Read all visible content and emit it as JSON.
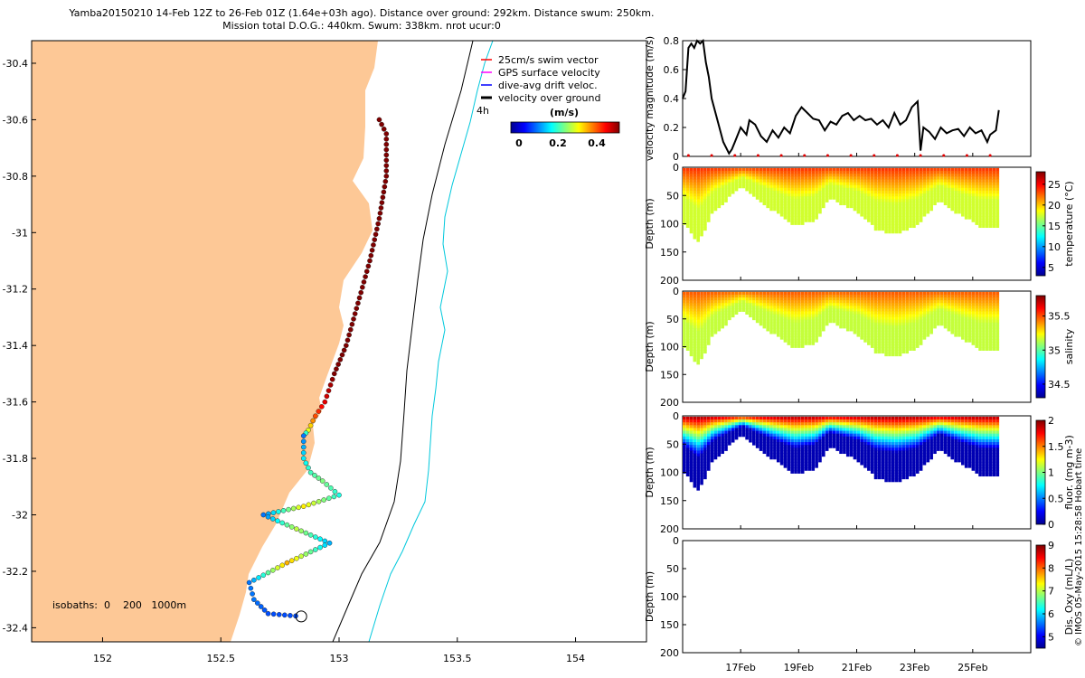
{
  "header": {
    "line1": "Yamba20150210 14-Feb 12Z to 26-Feb 01Z (1.64e+03h ago). Distance over ground: 292km. Distance swum: 250km.",
    "line2": "Mission total D.O.G.: 440km. Swum: 338km. nrot ucur:0"
  },
  "map": {
    "xticks": [
      "152",
      "152.5",
      "153",
      "153.5",
      "154"
    ],
    "yticks": [
      "-30.4",
      "-30.6",
      "-30.8",
      "-31",
      "-31.2",
      "-31.4",
      "-31.6",
      "-31.8",
      "-32",
      "-32.2",
      "-32.4"
    ],
    "legend": [
      "25cm/s swim vector",
      "GPS surface velocity",
      "dive-avg drift veloc.",
      "velocity over ground"
    ],
    "legend_colors": [
      "#ff0000",
      "#ff00ff",
      "#0000ff",
      "#000000"
    ],
    "time_marker": "4h",
    "colorbar_title": "(m/s)",
    "colorbar_ticks": [
      "0",
      "0.2",
      "0.4"
    ],
    "isobaths": "isobaths:  0    200   1000m",
    "land_color": "#fdc896",
    "isobath_200_color": "#000000",
    "isobath_1000_color": "#00c8dc"
  },
  "panels": {
    "velocity": {
      "ylabel": "velocity magnitude (m/s)",
      "yticks": [
        "0",
        "0.2",
        "0.4",
        "0.6",
        "0.8"
      ]
    },
    "temperature": {
      "ylabel": "Depth (m)",
      "cb_label": "temperature (°C)",
      "cb_ticks": [
        "5",
        "10",
        "15",
        "20",
        "25"
      ]
    },
    "salinity": {
      "ylabel": "Depth (m)",
      "cb_label": "salinity",
      "cb_ticks": [
        "34.5",
        "35",
        "35.5"
      ]
    },
    "fluor": {
      "ylabel": "Depth (m)",
      "cb_label": "fluor. (mg m-3)",
      "cb_ticks": [
        "0",
        "0.5",
        "1",
        "1.5",
        "2"
      ]
    },
    "oxygen": {
      "ylabel": "Depth (m)",
      "cb_label": "Dis. Oxy (mL/L)",
      "cb_ticks": [
        "5",
        "6",
        "7",
        "8",
        "9"
      ]
    },
    "depth_ticks": [
      "0",
      "50",
      "100",
      "150",
      "200"
    ],
    "xticks": [
      "17Feb",
      "19Feb",
      "21Feb",
      "23Feb",
      "25Feb"
    ]
  },
  "watermark": "© IMOS 05-May-2015 15:28:58 Hobart time",
  "chart_data": [
    {
      "type": "scatter",
      "name": "glider track",
      "xlim": [
        151.7,
        154.3
      ],
      "ylim": [
        -32.45,
        -30.32
      ],
      "xlabel": "",
      "ylabel": "",
      "x": [
        153.17,
        153.2,
        153.2,
        153.17,
        153.13,
        153.08,
        153.03,
        152.98,
        152.94,
        152.9,
        152.87,
        152.85,
        152.85,
        152.88,
        152.93,
        153.0,
        152.85,
        152.68,
        152.82,
        152.96,
        152.78,
        152.62,
        152.64,
        152.7,
        152.84
      ],
      "y": [
        -30.6,
        -30.65,
        -30.8,
        -30.95,
        -31.1,
        -31.25,
        -31.4,
        -31.5,
        -31.6,
        -31.65,
        -31.7,
        -31.72,
        -31.8,
        -31.85,
        -31.88,
        -31.93,
        -31.97,
        -32.0,
        -32.05,
        -32.1,
        -32.17,
        -32.24,
        -32.3,
        -32.35,
        -32.36
      ],
      "speed": [
        0.5,
        0.5,
        0.5,
        0.5,
        0.5,
        0.5,
        0.5,
        0.5,
        0.45,
        0.4,
        0.3,
        0.12,
        0.18,
        0.22,
        0.25,
        0.2,
        0.32,
        0.12,
        0.28,
        0.15,
        0.35,
        0.12,
        0.12,
        0.1,
        0.1
      ]
    },
    {
      "type": "line",
      "name": "velocity magnitude",
      "xlim": [
        15.0,
        27.0
      ],
      "ylim": [
        0,
        0.8
      ],
      "x": [
        15.0,
        15.1,
        15.2,
        15.3,
        15.4,
        15.5,
        15.6,
        15.7,
        15.8,
        15.9,
        16.0,
        16.2,
        16.4,
        16.6,
        16.7,
        16.8,
        17.0,
        17.2,
        17.3,
        17.5,
        17.7,
        17.9,
        18.1,
        18.3,
        18.5,
        18.7,
        18.9,
        19.1,
        19.3,
        19.5,
        19.7,
        19.9,
        20.1,
        20.3,
        20.5,
        20.7,
        20.9,
        21.1,
        21.3,
        21.5,
        21.7,
        21.9,
        22.1,
        22.3,
        22.5,
        22.7,
        22.9,
        23.1,
        23.2,
        23.3,
        23.5,
        23.7,
        23.9,
        24.1,
        24.3,
        24.5,
        24.7,
        24.9,
        25.1,
        25.3,
        25.5,
        25.6,
        25.8,
        25.9
      ],
      "y": [
        0.4,
        0.45,
        0.75,
        0.78,
        0.75,
        0.8,
        0.78,
        0.8,
        0.65,
        0.55,
        0.4,
        0.25,
        0.1,
        0.02,
        0.05,
        0.1,
        0.2,
        0.15,
        0.25,
        0.22,
        0.14,
        0.1,
        0.18,
        0.13,
        0.2,
        0.16,
        0.28,
        0.34,
        0.3,
        0.26,
        0.25,
        0.18,
        0.24,
        0.22,
        0.28,
        0.3,
        0.25,
        0.28,
        0.25,
        0.26,
        0.22,
        0.25,
        0.2,
        0.3,
        0.22,
        0.25,
        0.34,
        0.38,
        0.04,
        0.2,
        0.17,
        0.12,
        0.2,
        0.16,
        0.18,
        0.19,
        0.14,
        0.2,
        0.16,
        0.18,
        0.1,
        0.15,
        0.18,
        0.32
      ]
    },
    {
      "type": "heatmap",
      "name": "temperature section",
      "xlim": [
        15.0,
        27.0
      ],
      "ylim": [
        200,
        0
      ],
      "clim": [
        3,
        28
      ],
      "dive_days": [
        15.0,
        15.5,
        16.0,
        17.0,
        18.0,
        18.8,
        19.5,
        20.0,
        21.0,
        21.6,
        22.3,
        23.0,
        23.8,
        24.5,
        25.2,
        25.9
      ],
      "max_depth": [
        100,
        135,
        80,
        35,
        75,
        105,
        95,
        55,
        80,
        110,
        120,
        105,
        60,
        85,
        105,
        108
      ],
      "surface_value": 24,
      "deep_value": 17.5
    },
    {
      "type": "heatmap",
      "name": "salinity section",
      "xlim": [
        15.0,
        27.0
      ],
      "ylim": [
        200,
        0
      ],
      "clim": [
        34.3,
        35.8
      ],
      "surface_value": 35.5,
      "deep_value": 35.15
    },
    {
      "type": "heatmap",
      "name": "fluorescence section",
      "xlim": [
        15.0,
        27.0
      ],
      "ylim": [
        200,
        0
      ],
      "clim": [
        0,
        2
      ],
      "surface_value": 2.0,
      "deep_value": 0.1
    },
    {
      "type": "heatmap",
      "name": "dissolved oxygen section",
      "xlim": [
        15.0,
        27.0
      ],
      "ylim": [
        200,
        0
      ],
      "clim": [
        4.5,
        9
      ],
      "values": []
    }
  ]
}
